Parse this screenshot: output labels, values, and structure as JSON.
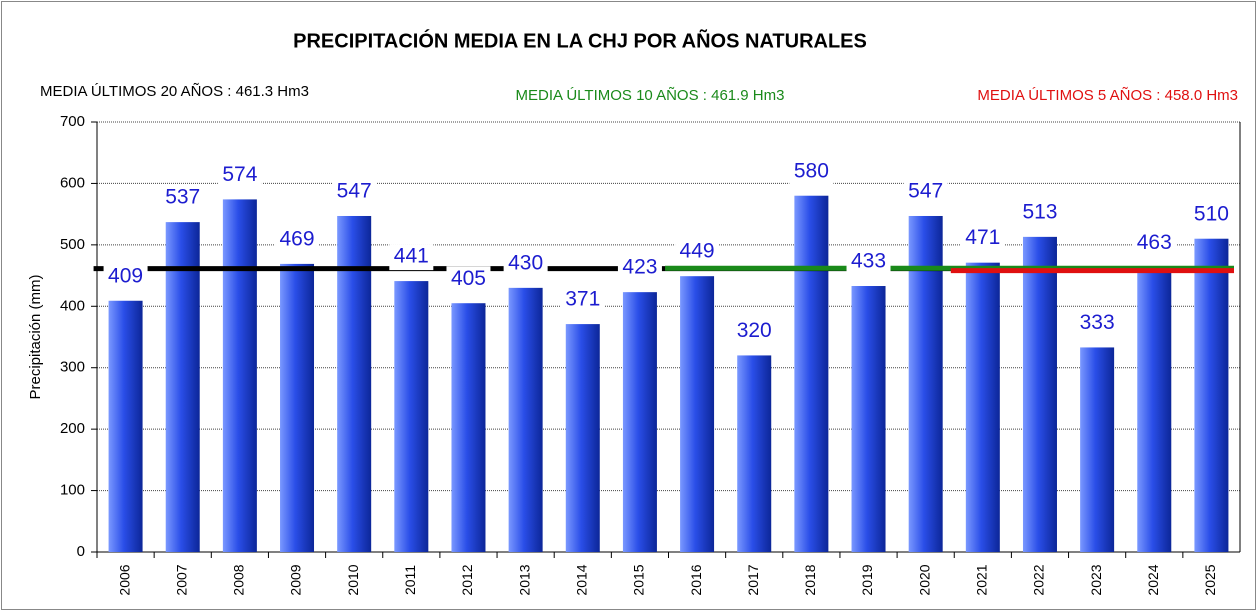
{
  "chart_data": {
    "type": "bar",
    "title": "PRECIPITACIÓN MEDIA EN LA CHJ POR AÑOS NATURALES",
    "y_label": "Precipitación (mm)",
    "categories": [
      "2006",
      "2007",
      "2008",
      "2009",
      "2010",
      "2011",
      "2012",
      "2013",
      "2014",
      "2015",
      "2016",
      "2017",
      "2018",
      "2019",
      "2020",
      "2021",
      "2022",
      "2023",
      "2024",
      "2025"
    ],
    "values": [
      409,
      537,
      574,
      469,
      547,
      441,
      405,
      430,
      371,
      423,
      449,
      320,
      580,
      433,
      547,
      471,
      513,
      333,
      463,
      510
    ],
    "color": "#2a4ee8",
    "label_color": "#1c1ccf",
    "ylim": [
      0,
      700
    ],
    "yticks": [
      0,
      100,
      200,
      300,
      400,
      500,
      600,
      700
    ],
    "grid": true,
    "mean_lines": [
      {
        "label": "MEDIA ÚLTIMOS 20 AÑOS : 461.3 Hm3",
        "value": 461.3,
        "color": "#000000",
        "from": "2006"
      },
      {
        "label": "MEDIA ÚLTIMOS 10 AÑOS : 461.9 Hm3",
        "value": 461.9,
        "color": "#1a8a1a",
        "from": "2016"
      },
      {
        "label": "MEDIA ÚLTIMOS 5 AÑOS : 458.0 Hm3",
        "value": 458.0,
        "color": "#e01010",
        "from": "2021"
      }
    ]
  }
}
